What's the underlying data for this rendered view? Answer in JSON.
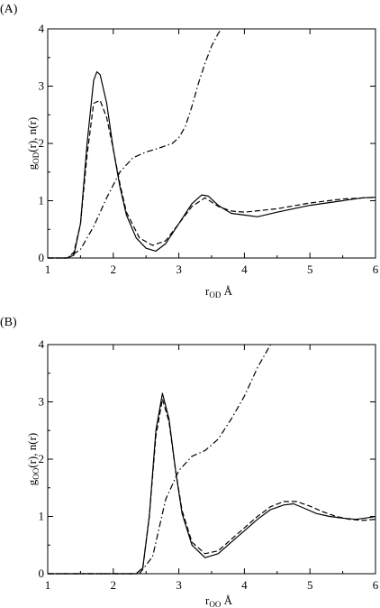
{
  "panels": [
    {
      "label": "(A)",
      "ylabel": {
        "main": "g",
        "sub": "OD",
        "rest": "(r), n(r)"
      },
      "xlabel": {
        "main": "r",
        "sub": "OD",
        "rest": " Å"
      }
    },
    {
      "label": "(B)",
      "ylabel": {
        "main": "g",
        "sub": "OO",
        "rest": "(r), n(r)"
      },
      "xlabel": {
        "main": "r",
        "sub": "OO",
        "rest": " Å"
      }
    }
  ],
  "chart_data": [
    {
      "type": "line",
      "xlim": [
        1,
        6
      ],
      "ylim": [
        0,
        4
      ],
      "xticks": [
        "1",
        "2",
        "3",
        "4",
        "5",
        "6"
      ],
      "yticks": [
        "0",
        "1",
        "2",
        "3",
        "4"
      ],
      "grid": false,
      "series": [
        {
          "style": "solid",
          "x": [
            1.0,
            1.3,
            1.4,
            1.5,
            1.6,
            1.7,
            1.75,
            1.8,
            1.9,
            2.0,
            2.1,
            2.2,
            2.35,
            2.5,
            2.65,
            2.8,
            3.0,
            3.2,
            3.35,
            3.45,
            3.6,
            3.8,
            4.0,
            4.2,
            4.5,
            5.0,
            5.5,
            5.8,
            6.0
          ],
          "y": [
            0.0,
            0.0,
            0.05,
            0.6,
            2.0,
            3.1,
            3.25,
            3.2,
            2.7,
            1.9,
            1.25,
            0.75,
            0.35,
            0.17,
            0.12,
            0.25,
            0.6,
            0.95,
            1.1,
            1.08,
            0.92,
            0.78,
            0.75,
            0.72,
            0.8,
            0.92,
            1.0,
            1.05,
            1.06
          ]
        },
        {
          "style": "dashed",
          "x": [
            1.0,
            1.3,
            1.4,
            1.5,
            1.6,
            1.7,
            1.8,
            1.9,
            2.0,
            2.1,
            2.2,
            2.4,
            2.6,
            2.8,
            3.0,
            3.2,
            3.4,
            3.6,
            3.8,
            4.0,
            4.5,
            5.0,
            5.5,
            6.0
          ],
          "y": [
            0.0,
            0.0,
            0.1,
            0.6,
            1.8,
            2.7,
            2.75,
            2.45,
            1.9,
            1.3,
            0.8,
            0.35,
            0.22,
            0.3,
            0.6,
            0.9,
            1.05,
            0.9,
            0.82,
            0.8,
            0.86,
            0.96,
            1.03,
            1.06
          ]
        },
        {
          "style": "dashdot",
          "x": [
            1.0,
            1.3,
            1.5,
            1.7,
            1.9,
            2.1,
            2.3,
            2.5,
            2.7,
            2.9,
            3.0,
            3.1,
            3.2,
            3.3,
            3.4,
            3.5,
            3.6,
            3.65,
            3.72
          ],
          "y": [
            0.0,
            0.0,
            0.15,
            0.55,
            1.05,
            1.5,
            1.75,
            1.85,
            1.92,
            2.0,
            2.1,
            2.3,
            2.65,
            3.05,
            3.4,
            3.7,
            3.92,
            4.0,
            4.1
          ]
        }
      ]
    },
    {
      "type": "line",
      "xlim": [
        1,
        6
      ],
      "ylim": [
        0,
        4
      ],
      "xticks": [
        "1",
        "2",
        "3",
        "4",
        "5",
        "6"
      ],
      "yticks": [
        "0",
        "1",
        "2",
        "3",
        "4"
      ],
      "grid": false,
      "series": [
        {
          "style": "solid",
          "x": [
            1.0,
            2.35,
            2.45,
            2.55,
            2.65,
            2.75,
            2.85,
            2.95,
            3.05,
            3.2,
            3.4,
            3.6,
            3.8,
            4.0,
            4.2,
            4.4,
            4.6,
            4.75,
            4.9,
            5.1,
            5.3,
            5.5,
            5.7,
            5.9,
            6.0
          ],
          "y": [
            0.0,
            0.0,
            0.1,
            1.0,
            2.5,
            3.15,
            2.7,
            1.8,
            1.05,
            0.5,
            0.28,
            0.35,
            0.55,
            0.75,
            0.95,
            1.12,
            1.2,
            1.22,
            1.15,
            1.05,
            1.0,
            0.97,
            0.95,
            0.98,
            1.0
          ]
        },
        {
          "style": "dashed",
          "x": [
            1.0,
            2.35,
            2.45,
            2.55,
            2.65,
            2.75,
            2.85,
            2.95,
            3.05,
            3.2,
            3.4,
            3.6,
            3.8,
            4.0,
            4.2,
            4.4,
            4.6,
            4.8,
            5.0,
            5.2,
            5.4,
            5.6,
            5.8,
            6.0
          ],
          "y": [
            0.0,
            0.0,
            0.1,
            1.0,
            2.4,
            3.05,
            2.65,
            1.8,
            1.1,
            0.55,
            0.35,
            0.4,
            0.6,
            0.8,
            1.0,
            1.17,
            1.26,
            1.26,
            1.18,
            1.08,
            1.0,
            0.95,
            0.93,
            0.95
          ]
        },
        {
          "style": "dashdot",
          "x": [
            1.0,
            2.4,
            2.6,
            2.8,
            3.0,
            3.2,
            3.4,
            3.6,
            3.8,
            3.9,
            4.0,
            4.1,
            4.2,
            4.3,
            4.4,
            4.5
          ],
          "y": [
            0.0,
            0.0,
            0.3,
            1.3,
            1.8,
            2.05,
            2.15,
            2.35,
            2.7,
            2.9,
            3.1,
            3.35,
            3.6,
            3.8,
            4.0,
            4.1
          ]
        }
      ]
    }
  ]
}
